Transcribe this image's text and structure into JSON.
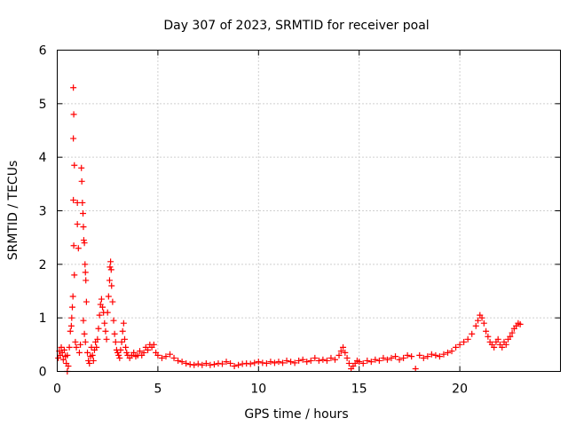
{
  "chart_data": {
    "type": "scatter",
    "title": "Day 307 of 2023, SRMTID for receiver poal",
    "xlabel": "GPS time / hours",
    "ylabel": "SRMTID / TECUs",
    "xlim": [
      0,
      25
    ],
    "ylim": [
      0,
      6
    ],
    "xticks": [
      0,
      5,
      10,
      15,
      20
    ],
    "yticks": [
      0,
      1,
      2,
      3,
      4,
      5,
      6
    ],
    "xtick_labels": [
      "0",
      "5",
      "10",
      "15",
      "20"
    ],
    "ytick_labels": [
      "0",
      "1",
      "2",
      "3",
      "4",
      "5",
      "6"
    ],
    "grid": true,
    "marker": "+",
    "color": "#ff0000",
    "series": [
      {
        "name": "SRMTID",
        "points": [
          [
            0.05,
            0.25
          ],
          [
            0.1,
            0.38
          ],
          [
            0.15,
            0.3
          ],
          [
            0.2,
            0.45
          ],
          [
            0.25,
            0.35
          ],
          [
            0.3,
            0.22
          ],
          [
            0.35,
            0.4
          ],
          [
            0.4,
            0.28
          ],
          [
            0.45,
            0.15
          ],
          [
            0.5,
            0.3
          ],
          [
            0.5,
            0.0
          ],
          [
            0.55,
            0.1
          ],
          [
            0.6,
            0.45
          ],
          [
            0.65,
            0.75
          ],
          [
            0.7,
            0.85
          ],
          [
            0.72,
            1.0
          ],
          [
            0.75,
            1.2
          ],
          [
            0.78,
            1.4
          ],
          [
            0.8,
            5.3
          ],
          [
            0.82,
            4.8
          ],
          [
            0.8,
            4.35
          ],
          [
            0.85,
            3.85
          ],
          [
            0.8,
            3.2
          ],
          [
            0.82,
            2.35
          ],
          [
            0.85,
            1.8
          ],
          [
            0.9,
            0.55
          ],
          [
            0.95,
            0.45
          ],
          [
            1.0,
            3.15
          ],
          [
            1.0,
            2.75
          ],
          [
            1.05,
            2.3
          ],
          [
            1.1,
            0.35
          ],
          [
            1.15,
            0.5
          ],
          [
            1.2,
            3.8
          ],
          [
            1.22,
            3.55
          ],
          [
            1.25,
            3.15
          ],
          [
            1.28,
            2.95
          ],
          [
            1.3,
            2.7
          ],
          [
            1.32,
            2.45
          ],
          [
            1.35,
            2.4
          ],
          [
            1.38,
            2.0
          ],
          [
            1.4,
            1.85
          ],
          [
            1.42,
            1.7
          ],
          [
            1.45,
            1.3
          ],
          [
            1.3,
            0.95
          ],
          [
            1.35,
            0.7
          ],
          [
            1.4,
            0.55
          ],
          [
            1.5,
            0.35
          ],
          [
            1.55,
            0.2
          ],
          [
            1.6,
            0.15
          ],
          [
            1.65,
            0.28
          ],
          [
            1.7,
            0.45
          ],
          [
            1.75,
            0.3
          ],
          [
            1.8,
            0.2
          ],
          [
            1.85,
            0.4
          ],
          [
            1.9,
            0.55
          ],
          [
            1.95,
            0.45
          ],
          [
            2.0,
            0.6
          ],
          [
            2.05,
            0.8
          ],
          [
            2.1,
            1.05
          ],
          [
            2.15,
            1.25
          ],
          [
            2.2,
            1.35
          ],
          [
            2.25,
            1.2
          ],
          [
            2.3,
            1.1
          ],
          [
            2.35,
            0.9
          ],
          [
            2.4,
            0.75
          ],
          [
            2.45,
            0.6
          ],
          [
            2.5,
            1.1
          ],
          [
            2.55,
            1.4
          ],
          [
            2.6,
            1.7
          ],
          [
            2.62,
            1.95
          ],
          [
            2.65,
            2.05
          ],
          [
            2.68,
            1.9
          ],
          [
            2.7,
            1.6
          ],
          [
            2.75,
            1.3
          ],
          [
            2.8,
            0.95
          ],
          [
            2.85,
            0.7
          ],
          [
            2.9,
            0.55
          ],
          [
            2.95,
            0.4
          ],
          [
            3.0,
            0.35
          ],
          [
            3.05,
            0.3
          ],
          [
            3.1,
            0.25
          ],
          [
            3.15,
            0.4
          ],
          [
            3.2,
            0.55
          ],
          [
            3.25,
            0.75
          ],
          [
            3.3,
            0.9
          ],
          [
            3.35,
            0.6
          ],
          [
            3.4,
            0.45
          ],
          [
            3.45,
            0.35
          ],
          [
            3.5,
            0.3
          ],
          [
            3.6,
            0.25
          ],
          [
            3.7,
            0.3
          ],
          [
            3.8,
            0.35
          ],
          [
            3.9,
            0.28
          ],
          [
            4.0,
            0.3
          ],
          [
            4.1,
            0.38
          ],
          [
            4.2,
            0.3
          ],
          [
            4.3,
            0.35
          ],
          [
            4.4,
            0.45
          ],
          [
            4.5,
            0.4
          ],
          [
            4.6,
            0.5
          ],
          [
            4.7,
            0.45
          ],
          [
            4.8,
            0.5
          ],
          [
            4.9,
            0.35
          ],
          [
            5.0,
            0.3
          ],
          [
            5.2,
            0.25
          ],
          [
            5.4,
            0.28
          ],
          [
            5.6,
            0.32
          ],
          [
            5.8,
            0.25
          ],
          [
            6.0,
            0.2
          ],
          [
            6.2,
            0.18
          ],
          [
            6.4,
            0.15
          ],
          [
            6.6,
            0.13
          ],
          [
            6.8,
            0.12
          ],
          [
            7.0,
            0.14
          ],
          [
            7.2,
            0.12
          ],
          [
            7.4,
            0.15
          ],
          [
            7.6,
            0.12
          ],
          [
            7.8,
            0.13
          ],
          [
            8.0,
            0.15
          ],
          [
            8.2,
            0.14
          ],
          [
            8.4,
            0.18
          ],
          [
            8.6,
            0.15
          ],
          [
            8.8,
            0.1
          ],
          [
            9.0,
            0.12
          ],
          [
            9.2,
            0.14
          ],
          [
            9.4,
            0.15
          ],
          [
            9.6,
            0.14
          ],
          [
            9.8,
            0.16
          ],
          [
            10.0,
            0.18
          ],
          [
            10.2,
            0.16
          ],
          [
            10.4,
            0.15
          ],
          [
            10.6,
            0.18
          ],
          [
            10.8,
            0.16
          ],
          [
            11.0,
            0.18
          ],
          [
            11.2,
            0.16
          ],
          [
            11.4,
            0.2
          ],
          [
            11.6,
            0.18
          ],
          [
            11.8,
            0.16
          ],
          [
            12.0,
            0.2
          ],
          [
            12.2,
            0.22
          ],
          [
            12.4,
            0.18
          ],
          [
            12.6,
            0.2
          ],
          [
            12.8,
            0.25
          ],
          [
            13.0,
            0.2
          ],
          [
            13.2,
            0.22
          ],
          [
            13.4,
            0.2
          ],
          [
            13.6,
            0.25
          ],
          [
            13.8,
            0.22
          ],
          [
            14.0,
            0.3
          ],
          [
            14.1,
            0.38
          ],
          [
            14.2,
            0.45
          ],
          [
            14.3,
            0.35
          ],
          [
            14.4,
            0.25
          ],
          [
            14.5,
            0.15
          ],
          [
            14.6,
            0.05
          ],
          [
            14.7,
            0.1
          ],
          [
            14.8,
            0.15
          ],
          [
            14.9,
            0.2
          ],
          [
            15.0,
            0.18
          ],
          [
            15.2,
            0.15
          ],
          [
            15.4,
            0.2
          ],
          [
            15.6,
            0.18
          ],
          [
            15.8,
            0.22
          ],
          [
            16.0,
            0.2
          ],
          [
            16.2,
            0.25
          ],
          [
            16.4,
            0.22
          ],
          [
            16.6,
            0.25
          ],
          [
            16.8,
            0.28
          ],
          [
            17.0,
            0.22
          ],
          [
            17.2,
            0.25
          ],
          [
            17.4,
            0.3
          ],
          [
            17.6,
            0.28
          ],
          [
            17.8,
            0.05
          ],
          [
            18.0,
            0.3
          ],
          [
            18.2,
            0.25
          ],
          [
            18.4,
            0.28
          ],
          [
            18.6,
            0.32
          ],
          [
            18.8,
            0.3
          ],
          [
            19.0,
            0.28
          ],
          [
            19.2,
            0.32
          ],
          [
            19.4,
            0.35
          ],
          [
            19.6,
            0.38
          ],
          [
            19.8,
            0.45
          ],
          [
            20.0,
            0.5
          ],
          [
            20.2,
            0.55
          ],
          [
            20.4,
            0.6
          ],
          [
            20.6,
            0.7
          ],
          [
            20.8,
            0.85
          ],
          [
            20.9,
            0.95
          ],
          [
            21.0,
            1.05
          ],
          [
            21.1,
            1.0
          ],
          [
            21.2,
            0.9
          ],
          [
            21.3,
            0.75
          ],
          [
            21.4,
            0.65
          ],
          [
            21.5,
            0.55
          ],
          [
            21.6,
            0.5
          ],
          [
            21.7,
            0.45
          ],
          [
            21.8,
            0.55
          ],
          [
            21.9,
            0.6
          ],
          [
            22.0,
            0.5
          ],
          [
            22.1,
            0.45
          ],
          [
            22.2,
            0.55
          ],
          [
            22.3,
            0.5
          ],
          [
            22.4,
            0.6
          ],
          [
            22.5,
            0.65
          ],
          [
            22.6,
            0.72
          ],
          [
            22.7,
            0.8
          ],
          [
            22.8,
            0.85
          ],
          [
            22.9,
            0.9
          ],
          [
            23.0,
            0.88
          ]
        ]
      }
    ]
  }
}
